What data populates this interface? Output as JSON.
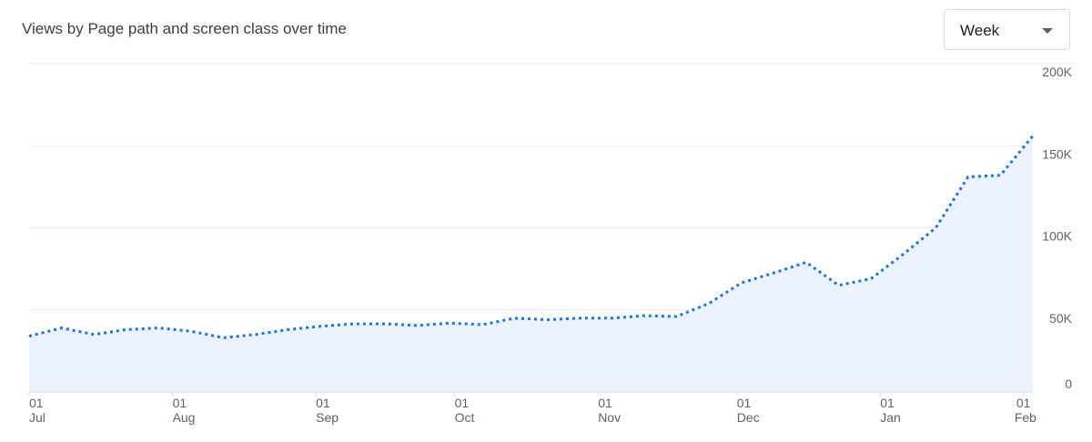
{
  "title": "Views by Page path and screen class over time",
  "granularity_dropdown": {
    "selected": "Week"
  },
  "chart_data": {
    "type": "area",
    "title": "Views by Page path and screen class over time",
    "xlabel": "",
    "ylabel": "",
    "ylim": [
      0,
      200000
    ],
    "grid": true,
    "y_axis_position": "right",
    "line_style": "dotted",
    "colors": {
      "line": "#1a73e8",
      "fill": "#ecf3fe"
    },
    "y_ticks": [
      {
        "value": 0,
        "label": "0"
      },
      {
        "value": 50000,
        "label": "50K"
      },
      {
        "value": 100000,
        "label": "100K"
      },
      {
        "value": 150000,
        "label": "150K"
      },
      {
        "value": 200000,
        "label": "200K"
      }
    ],
    "x_ticks": [
      {
        "day": "01",
        "month": "Jul",
        "offset_days": 0
      },
      {
        "day": "01",
        "month": "Aug",
        "offset_days": 31
      },
      {
        "day": "01",
        "month": "Sep",
        "offset_days": 62
      },
      {
        "day": "01",
        "month": "Oct",
        "offset_days": 92
      },
      {
        "day": "01",
        "month": "Nov",
        "offset_days": 123
      },
      {
        "day": "01",
        "month": "Dec",
        "offset_days": 153
      },
      {
        "day": "01",
        "month": "Jan",
        "offset_days": 184
      },
      {
        "day": "01",
        "month": "Feb",
        "offset_days": 215
      }
    ],
    "x": [
      "Jul 1",
      "Jul 8",
      "Jul 15",
      "Jul 22",
      "Jul 29",
      "Aug 5",
      "Aug 12",
      "Aug 19",
      "Aug 26",
      "Sep 2",
      "Sep 9",
      "Sep 16",
      "Sep 23",
      "Sep 30",
      "Oct 7",
      "Oct 14",
      "Oct 21",
      "Oct 28",
      "Nov 4",
      "Nov 11",
      "Nov 18",
      "Nov 25",
      "Dec 2",
      "Dec 9",
      "Dec 16",
      "Dec 23",
      "Dec 30",
      "Jan 6",
      "Jan 13",
      "Jan 20",
      "Jan 27",
      "Feb 3"
    ],
    "values": [
      34000,
      39000,
      35000,
      38000,
      39000,
      37000,
      33000,
      35000,
      38000,
      40000,
      41500,
      41500,
      40500,
      42000,
      41000,
      45000,
      44000,
      45000,
      45000,
      46500,
      46000,
      54000,
      66500,
      72500,
      79000,
      65000,
      69000,
      84000,
      100000,
      131000,
      132000,
      156000
    ]
  }
}
